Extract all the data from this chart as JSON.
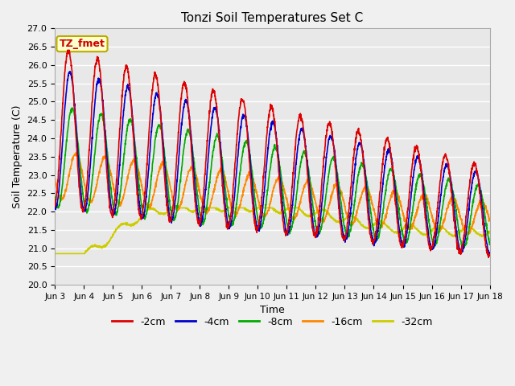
{
  "title": "Tonzi Soil Temperatures Set C",
  "xlabel": "Time",
  "ylabel": "Soil Temperature (C)",
  "ylim": [
    20.0,
    27.0
  ],
  "yticks": [
    20.0,
    20.5,
    21.0,
    21.5,
    22.0,
    22.5,
    23.0,
    23.5,
    24.0,
    24.5,
    25.0,
    25.5,
    26.0,
    26.5,
    27.0
  ],
  "fig_bg_color": "#f0f0f0",
  "plot_bg_color": "#e8e8e8",
  "annotation_text": "TZ_fmet",
  "annotation_bg": "#ffffcc",
  "annotation_border": "#bbaa00",
  "annotation_text_color": "#cc0000",
  "lines": {
    "-2cm": {
      "color": "#dd0000",
      "lw": 1.2
    },
    "-4cm": {
      "color": "#0000cc",
      "lw": 1.2
    },
    "-8cm": {
      "color": "#00aa00",
      "lw": 1.2
    },
    "-16cm": {
      "color": "#ff8800",
      "lw": 1.2
    },
    "-32cm": {
      "color": "#cccc00",
      "lw": 1.2
    }
  },
  "legend_labels": [
    "-2cm",
    "-4cm",
    "-8cm",
    "-16cm",
    "-32cm"
  ],
  "legend_colors": [
    "#dd0000",
    "#0000cc",
    "#00aa00",
    "#ff8800",
    "#cccc00"
  ],
  "n_days": 15,
  "points_per_day": 144,
  "start_day": 3
}
